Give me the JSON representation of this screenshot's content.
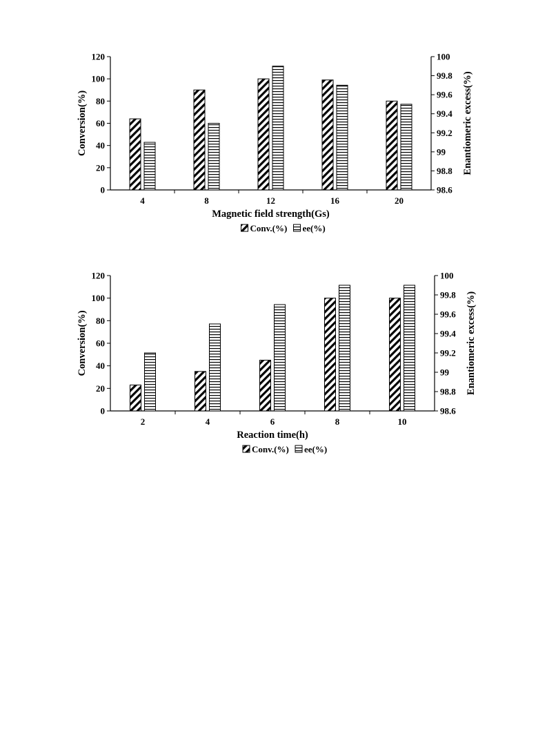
{
  "chart_data": [
    {
      "type": "bar",
      "xlabel": "Magnetic field strength(Gs)",
      "ylabel": "Conversion(%)",
      "y2label": "Enantiomeric excess(%)",
      "categories": [
        "4",
        "8",
        "12",
        "16",
        "20"
      ],
      "ylim": [
        0,
        120
      ],
      "yticks": [
        "0",
        "20",
        "40",
        "60",
        "80",
        "100",
        "120"
      ],
      "y2lim": [
        98.6,
        100
      ],
      "y2ticks": [
        "98.6",
        "98.8",
        "99",
        "99.2",
        "99.4",
        "99.6",
        "99.8",
        "100"
      ],
      "series": [
        {
          "name": "Conv.(%)",
          "axis": "left",
          "pattern": "diagonal",
          "values": [
            64,
            90,
            100,
            99,
            80
          ]
        },
        {
          "name": "ee(%)",
          "axis": "right",
          "pattern": "horizontal",
          "values": [
            99.1,
            99.3,
            99.9,
            99.7,
            99.5
          ]
        }
      ],
      "legend": "bottom-center",
      "grid": false
    },
    {
      "type": "bar",
      "xlabel": "Reaction time(h)",
      "ylabel": "Conversion(%)",
      "y2label": "Enantiomeric excess(%)",
      "categories": [
        "2",
        "4",
        "6",
        "8",
        "10"
      ],
      "ylim": [
        0,
        120
      ],
      "yticks": [
        "0",
        "20",
        "40",
        "60",
        "80",
        "100",
        "120"
      ],
      "y2lim": [
        98.6,
        100
      ],
      "y2ticks": [
        "98.6",
        "98.8",
        "99",
        "99.2",
        "99.4",
        "99.6",
        "99.8",
        "100"
      ],
      "series": [
        {
          "name": "Conv.(%)",
          "axis": "left",
          "pattern": "diagonal",
          "values": [
            23,
            35,
            45,
            100,
            100
          ]
        },
        {
          "name": "ee(%)",
          "axis": "right",
          "pattern": "horizontal",
          "values": [
            99.2,
            99.5,
            99.7,
            99.9,
            99.9
          ]
        }
      ],
      "legend": "bottom-center",
      "grid": false
    }
  ]
}
